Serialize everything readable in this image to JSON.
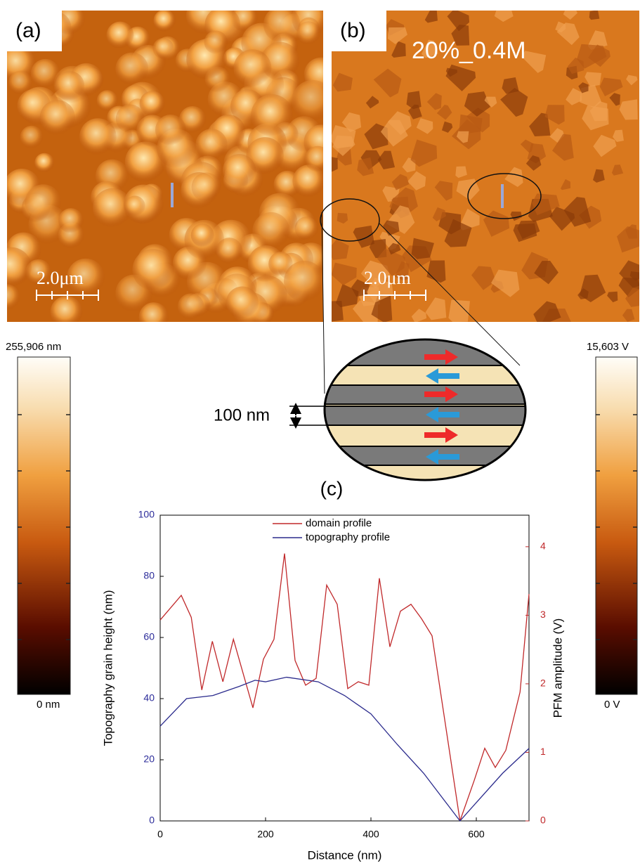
{
  "panel_a": {
    "label": "(a)",
    "scale_bar": "2.0μm"
  },
  "panel_b": {
    "label": "(b)",
    "sample": "20%_0.4M",
    "scale_bar": "2.0μm"
  },
  "colorbar_left": {
    "max_label": "255,906 nm",
    "min_label": "0 nm"
  },
  "colorbar_right": {
    "max_label": "15,603 V",
    "min_label": "0 V"
  },
  "schematic": {
    "width_label": "100 nm"
  },
  "panel_c": {
    "label": "(c)"
  },
  "chart_data": {
    "type": "line",
    "xlabel": "Distance (nm)",
    "ylabel": "Topography grain height (nm)",
    "y2label": "PFM amplitude (V)",
    "xlim": [
      0,
      700
    ],
    "xticks": [
      0,
      200,
      400,
      600
    ],
    "ylim": [
      0,
      100
    ],
    "yticks": [
      0,
      20,
      40,
      60,
      80,
      100
    ],
    "y2lim": [
      0,
      4.46
    ],
    "y2ticks": [
      0,
      1,
      2,
      3,
      4
    ],
    "legend": "upper center",
    "series": [
      {
        "name": "domain profile",
        "color": "#c0282a",
        "axis": "y2",
        "x": [
          0,
          40,
          59,
          79,
          99,
          119,
          139,
          176,
          196,
          216,
          236,
          256,
          276,
          296,
          316,
          336,
          356,
          376,
          396,
          416,
          436,
          456,
          476,
          496,
          516,
          569,
          596,
          616,
          636,
          656,
          683,
          700
        ],
        "values": [
          2.93,
          3.29,
          2.97,
          1.91,
          2.62,
          2.03,
          2.65,
          1.65,
          2.36,
          2.65,
          3.9,
          2.34,
          1.98,
          2.08,
          3.44,
          3.16,
          1.93,
          2.03,
          1.98,
          3.54,
          2.54,
          3.06,
          3.16,
          2.95,
          2.7,
          0,
          0.59,
          1.06,
          0.78,
          1.03,
          1.88,
          3.31
        ]
      },
      {
        "name": "topography profile",
        "color": "#2a2a8c",
        "x": [
          0,
          50,
          100,
          150,
          180,
          200,
          240,
          300,
          350,
          400,
          450,
          500,
          569,
          600,
          650,
          700
        ],
        "values": [
          31,
          40,
          41,
          44,
          46,
          45.5,
          47,
          45.5,
          41,
          35,
          25,
          15.6,
          0,
          6,
          15.6,
          23.7
        ]
      }
    ]
  }
}
